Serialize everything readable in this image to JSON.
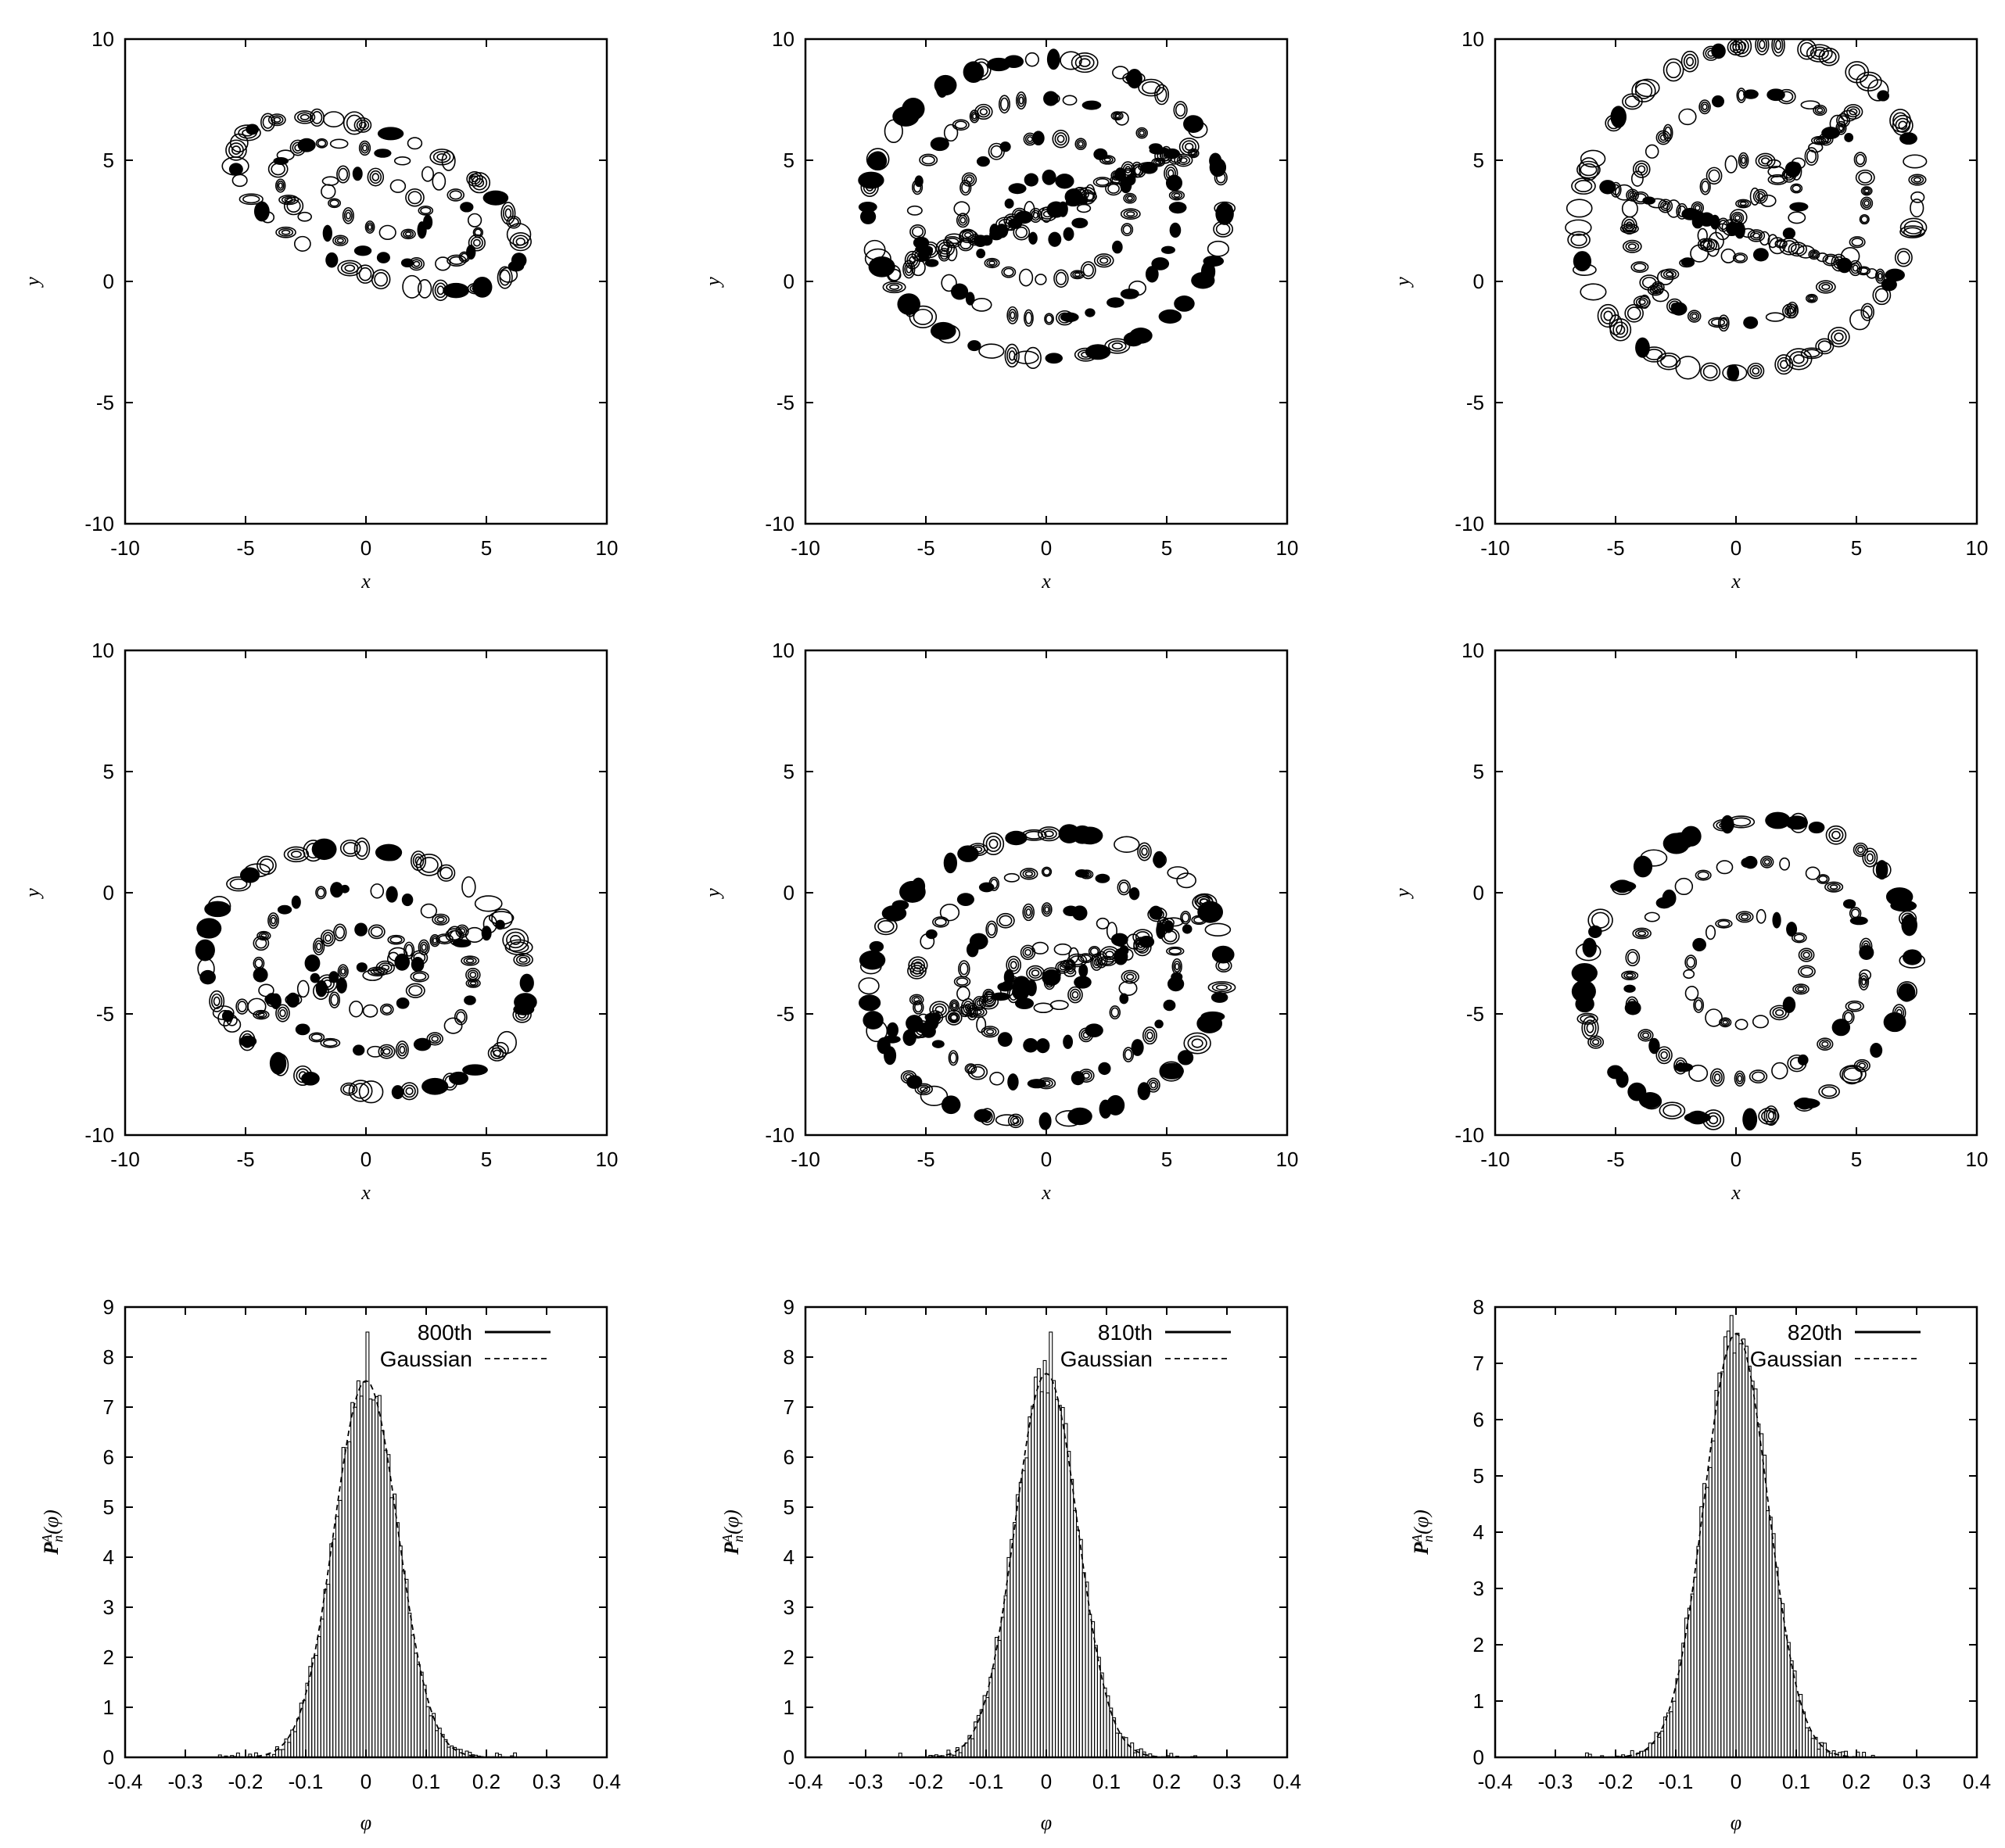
{
  "figure": {
    "panels_layout": "3x3",
    "colors": {
      "ink": "#000000",
      "background": "#ffffff"
    }
  },
  "chart_data": [
    {
      "type": "contour",
      "panel": "top-left",
      "xlabel": "x",
      "ylabel": "y",
      "xlim": [
        -10,
        10
      ],
      "ylim": [
        -10,
        10
      ],
      "xticks": [
        -10,
        -5,
        0,
        5,
        10
      ],
      "yticks": [
        -10,
        -5,
        0,
        5,
        10
      ],
      "pattern": "tilted-ring",
      "center": [
        0.5,
        3.2
      ],
      "radii": [
        6.3,
        2.9
      ],
      "rotation_deg": -22,
      "rings": [
        0.35,
        0.7,
        1.0
      ],
      "density": 0.45,
      "seed": 11
    },
    {
      "type": "contour",
      "panel": "top-middle",
      "xlabel": "x",
      "ylabel": "y",
      "xlim": [
        -10,
        10
      ],
      "ylim": [
        -10,
        10
      ],
      "xticks": [
        -10,
        -5,
        0,
        5,
        10
      ],
      "yticks": [
        -10,
        -5,
        0,
        5,
        10
      ],
      "pattern": "filled-disk",
      "center": [
        0,
        3
      ],
      "radii": [
        7.8,
        6.5
      ],
      "rotation_deg": 0,
      "rings": [
        0.2,
        0.45,
        0.7,
        0.95
      ],
      "density": 0.9,
      "seed": 23
    },
    {
      "type": "contour",
      "panel": "top-right",
      "xlabel": "x",
      "ylabel": "y",
      "xlim": [
        -10,
        10
      ],
      "ylim": [
        -10,
        10
      ],
      "xticks": [
        -10,
        -5,
        0,
        5,
        10
      ],
      "yticks": [
        -10,
        -5,
        0,
        5,
        10
      ],
      "pattern": "cross-bands",
      "center": [
        0.5,
        3
      ],
      "radii": [
        7.3,
        6.5
      ],
      "rotation_deg": 35,
      "rings": [
        0.3,
        0.7,
        1.0
      ],
      "density": 0.4,
      "seed": 37
    },
    {
      "type": "contour",
      "panel": "middle-left",
      "xlabel": "x",
      "ylabel": "y",
      "xlim": [
        -10,
        10
      ],
      "ylim": [
        -10,
        10
      ],
      "xticks": [
        -10,
        -5,
        0,
        5,
        10
      ],
      "yticks": [
        -10,
        -5,
        0,
        5,
        10
      ],
      "pattern": "ring-with-band",
      "center": [
        0,
        -3.2
      ],
      "radii": [
        7.5,
        5.5
      ],
      "rotation_deg": -12,
      "rings": [
        0.3,
        0.6,
        0.9
      ],
      "density": 0.75,
      "seed": 41
    },
    {
      "type": "contour",
      "panel": "middle-middle",
      "xlabel": "x",
      "ylabel": "y",
      "xlim": [
        -10,
        10
      ],
      "ylim": [
        -10,
        10
      ],
      "xticks": [
        -10,
        -5,
        0,
        5,
        10
      ],
      "yticks": [
        -10,
        -5,
        0,
        5,
        10
      ],
      "pattern": "filled-disk",
      "center": [
        0,
        -3.5
      ],
      "radii": [
        7.8,
        6.2
      ],
      "rotation_deg": 10,
      "rings": [
        0.2,
        0.45,
        0.7,
        0.95
      ],
      "density": 0.9,
      "seed": 53
    },
    {
      "type": "contour",
      "panel": "middle-right",
      "xlabel": "x",
      "ylabel": "y",
      "xlim": [
        -10,
        10
      ],
      "ylim": [
        -10,
        10
      ],
      "xticks": [
        -10,
        -5,
        0,
        5,
        10
      ],
      "yticks": [
        -10,
        -5,
        0,
        5,
        10
      ],
      "pattern": "ring",
      "center": [
        0.5,
        -3.2
      ],
      "radii": [
        7.2,
        6.2
      ],
      "rotation_deg": 25,
      "rings": [
        0.35,
        0.7,
        0.97
      ],
      "density": 0.85,
      "seed": 67
    },
    {
      "type": "histogram",
      "panel": "bottom-left",
      "xlabel": "φ",
      "ylabel": "P_n^A(φ)",
      "xlim": [
        -0.4,
        0.4
      ],
      "ylim": [
        0,
        9
      ],
      "xticks": [
        -0.4,
        -0.3,
        -0.2,
        -0.1,
        0,
        0.1,
        0.2,
        0.3,
        0.4
      ],
      "yticks": [
        0,
        1,
        2,
        3,
        4,
        5,
        6,
        7,
        8,
        9
      ],
      "series": [
        {
          "name": "800th",
          "style": "solid",
          "bin_width": 0.005,
          "sigma": 0.053,
          "peak": 8.5,
          "seed": 101
        },
        {
          "name": "Gaussian",
          "style": "dashed",
          "sigma": 0.053,
          "mean": 0.0
        }
      ],
      "legend": "top-right"
    },
    {
      "type": "histogram",
      "panel": "bottom-middle",
      "xlabel": "φ",
      "ylabel": "P_n^A(φ)",
      "xlim": [
        -0.4,
        0.4
      ],
      "ylim": [
        0,
        9
      ],
      "xticks": [
        -0.4,
        -0.3,
        -0.2,
        -0.1,
        0,
        0.1,
        0.2,
        0.3,
        0.4
      ],
      "yticks": [
        0,
        1,
        2,
        3,
        4,
        5,
        6,
        7,
        8,
        9
      ],
      "series": [
        {
          "name": "810th",
          "style": "solid",
          "bin_width": 0.005,
          "sigma": 0.052,
          "peak": 8.5,
          "seed": 202
        },
        {
          "name": "Gaussian",
          "style": "dashed",
          "sigma": 0.052,
          "mean": 0.0
        }
      ],
      "legend": "top-right"
    },
    {
      "type": "histogram",
      "panel": "bottom-right",
      "xlabel": "φ",
      "ylabel": "P_n^A(φ)",
      "xlim": [
        -0.4,
        0.4
      ],
      "ylim": [
        0,
        8
      ],
      "xticks": [
        -0.4,
        -0.3,
        -0.2,
        -0.1,
        0,
        0.1,
        0.2,
        0.3,
        0.4
      ],
      "yticks": [
        0,
        1,
        2,
        3,
        4,
        5,
        6,
        7,
        8
      ],
      "series": [
        {
          "name": "820th",
          "style": "solid",
          "bin_width": 0.005,
          "sigma": 0.053,
          "peak": 7.85,
          "seed": 303
        },
        {
          "name": "Gaussian",
          "style": "dashed",
          "sigma": 0.053,
          "mean": 0.0
        }
      ],
      "legend": "top-right"
    }
  ]
}
